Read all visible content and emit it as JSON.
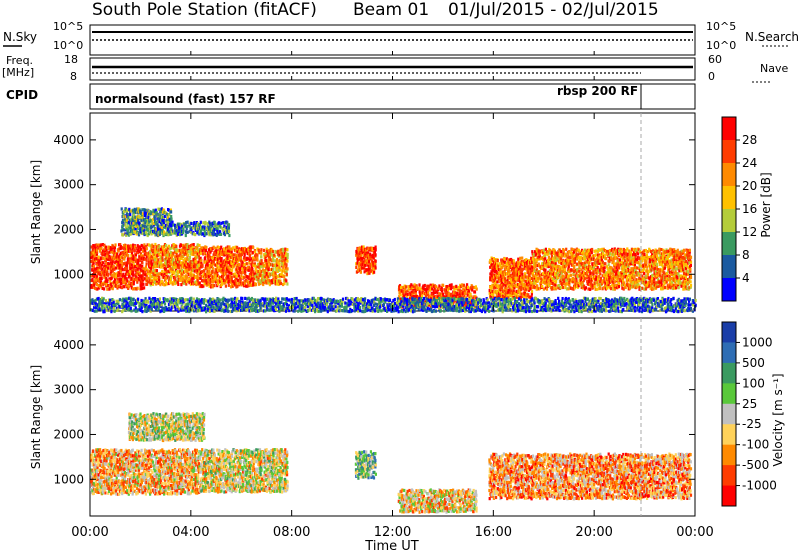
{
  "header": {
    "station": "South Pole Station (fitACF)",
    "beam": "Beam 01",
    "date_range": "01/Jul/2015 - 02/Jul/2015"
  },
  "summary": {
    "nsky_label": "N.Sky",
    "nsky_ticks": [
      "10^5",
      "10^0"
    ],
    "nsearch_label": "N.Search",
    "nsearch_ticks": [
      "10^5",
      "10^0"
    ],
    "freq_label": "Freq.",
    "freq_unit": "[MHz]",
    "freq_ticks": [
      "18",
      "8"
    ],
    "nave_label": "Nave",
    "nave_ticks": [
      "60",
      "0"
    ],
    "cpid_label": "CPID",
    "cpid_segments": [
      {
        "text": "normalsound (fast) 157 RF",
        "start_hour": 0
      },
      {
        "text": "rbsp 200 RF",
        "start_hour": 22
      }
    ]
  },
  "chart_data": [
    {
      "type": "heatmap",
      "name": "power",
      "ylabel": "Slant Range [km]",
      "yticks": [
        1000,
        2000,
        3000,
        4000
      ],
      "ylim": [
        180,
        4600
      ],
      "xlim": [
        0,
        24
      ],
      "colorbar_label": "Power [dB]",
      "colorbar_ticks": [
        "28",
        "24",
        "20",
        "16",
        "12",
        "8",
        "4"
      ],
      "colorbar_colors": [
        "#ff0000",
        "#ff3c00",
        "#ff8a00",
        "#ffc100",
        "#b4cc3a",
        "#3a9a60",
        "#1a5aa0",
        "#0000ff"
      ],
      "scatter_bands": [
        {
          "t0": 0.0,
          "t1": 2.2,
          "r0": 700,
          "r1": 1700,
          "level": 0.85
        },
        {
          "t0": 2.2,
          "t1": 4.3,
          "r0": 800,
          "r1": 1700,
          "level": 0.7
        },
        {
          "t0": 4.3,
          "t1": 6.5,
          "r0": 750,
          "r1": 1650,
          "level": 0.8
        },
        {
          "t0": 6.5,
          "t1": 7.8,
          "r0": 800,
          "r1": 1600,
          "level": 0.65
        },
        {
          "t0": 1.2,
          "t1": 3.2,
          "r0": 1900,
          "r1": 2500,
          "level": 0.3
        },
        {
          "t0": 3.0,
          "t1": 5.5,
          "r0": 1900,
          "r1": 2200,
          "level": 0.25
        },
        {
          "t0": 10.5,
          "t1": 11.3,
          "r0": 1050,
          "r1": 1650,
          "level": 0.85
        },
        {
          "t0": 12.2,
          "t1": 15.3,
          "r0": 300,
          "r1": 800,
          "level": 0.8
        },
        {
          "t0": 15.8,
          "t1": 17.5,
          "r0": 500,
          "r1": 1400,
          "level": 0.75
        },
        {
          "t0": 17.5,
          "t1": 23.8,
          "r0": 700,
          "r1": 1600,
          "level": 0.7
        },
        {
          "t0": 0.0,
          "t1": 24.0,
          "r0": 200,
          "r1": 500,
          "level": 0.2
        }
      ]
    },
    {
      "type": "heatmap",
      "name": "velocity",
      "ylabel": "Slant Range [km]",
      "yticks": [
        1000,
        2000,
        3000,
        4000
      ],
      "ylim": [
        180,
        4600
      ],
      "xlim": [
        0,
        24
      ],
      "xticks": [
        "00:00",
        "04:00",
        "08:00",
        "12:00",
        "16:00",
        "20:00",
        "00:00"
      ],
      "xlabel": "Time UT",
      "colorbar_label": "Velocity [m s⁻¹]",
      "colorbar_ticks": [
        "1000",
        "500",
        "100",
        "25",
        "-25",
        "-100",
        "-500",
        "-1000"
      ],
      "colorbar_colors": [
        "#1a3ea8",
        "#2e6db4",
        "#3a9a60",
        "#59c83a",
        "#c0c0c0",
        "#ffd25a",
        "#ff8a00",
        "#ff3c00",
        "#ff0000"
      ],
      "scatter_bands": [
        {
          "t0": 0.0,
          "t1": 4.3,
          "r0": 700,
          "r1": 1700,
          "level": 0.35
        },
        {
          "t0": 4.3,
          "t1": 7.8,
          "r0": 750,
          "r1": 1700,
          "level": 0.45
        },
        {
          "t0": 1.5,
          "t1": 4.5,
          "r0": 1900,
          "r1": 2500,
          "level": 0.5
        },
        {
          "t0": 10.5,
          "t1": 11.3,
          "r0": 1050,
          "r1": 1650,
          "level": 0.6
        },
        {
          "t0": 12.2,
          "t1": 15.3,
          "r0": 300,
          "r1": 800,
          "level": 0.4
        },
        {
          "t0": 15.8,
          "t1": 23.8,
          "r0": 600,
          "r1": 1600,
          "level": 0.3
        }
      ]
    }
  ]
}
